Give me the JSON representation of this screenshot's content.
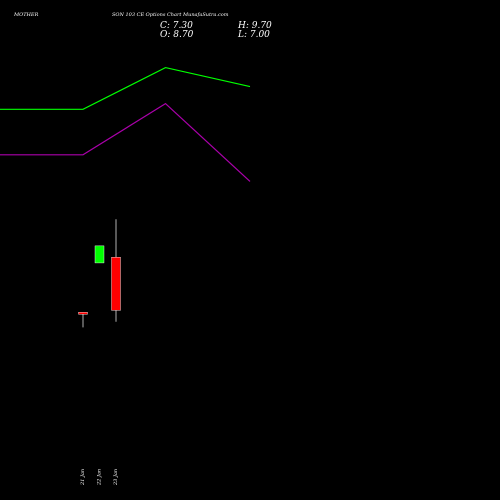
{
  "header": {
    "symbol": "MOTHER",
    "subtitle": "SON  103 CE Options  Chart MunafaSutra.com",
    "close_label": "C: 7.30",
    "high_label": "H: 9.70",
    "open_label": "O: 8.70",
    "low_label": "L: 7.00"
  },
  "chart_data": {
    "type": "candlestick",
    "title": "MOTHERSON 103 CE Options Chart MunafaSutra.com",
    "x_labels": [
      "21 Jan",
      "22 Jan",
      "23 Jan"
    ],
    "candles": [
      {
        "date": "21 Jan",
        "open": 7.25,
        "high": 7.25,
        "low": 6.85,
        "close": 7.2,
        "color": "#ff0000"
      },
      {
        "date": "22 Jan",
        "open": 8.55,
        "high": 9.0,
        "low": 8.55,
        "close": 9.0,
        "color": "#00ff00"
      },
      {
        "date": "23 Jan",
        "open": 8.7,
        "high": 9.7,
        "low": 7.0,
        "close": 7.3,
        "color": "#ff0000"
      }
    ],
    "series": [
      {
        "name": "",
        "color": "#00ff00",
        "x": [
          "",
          "21 Jan",
          "22 Jan",
          "23 Jan"
        ],
        "values": [
          12.6,
          12.6,
          13.7,
          13.2
        ]
      },
      {
        "name": "",
        "color": "#aa00aa",
        "x": [
          "",
          "21 Jan",
          "22 Jan",
          "23 Jan"
        ],
        "values": [
          11.4,
          11.4,
          12.75,
          10.7
        ]
      }
    ],
    "ylim": [
      5.2,
      13.9
    ],
    "grid": false
  }
}
